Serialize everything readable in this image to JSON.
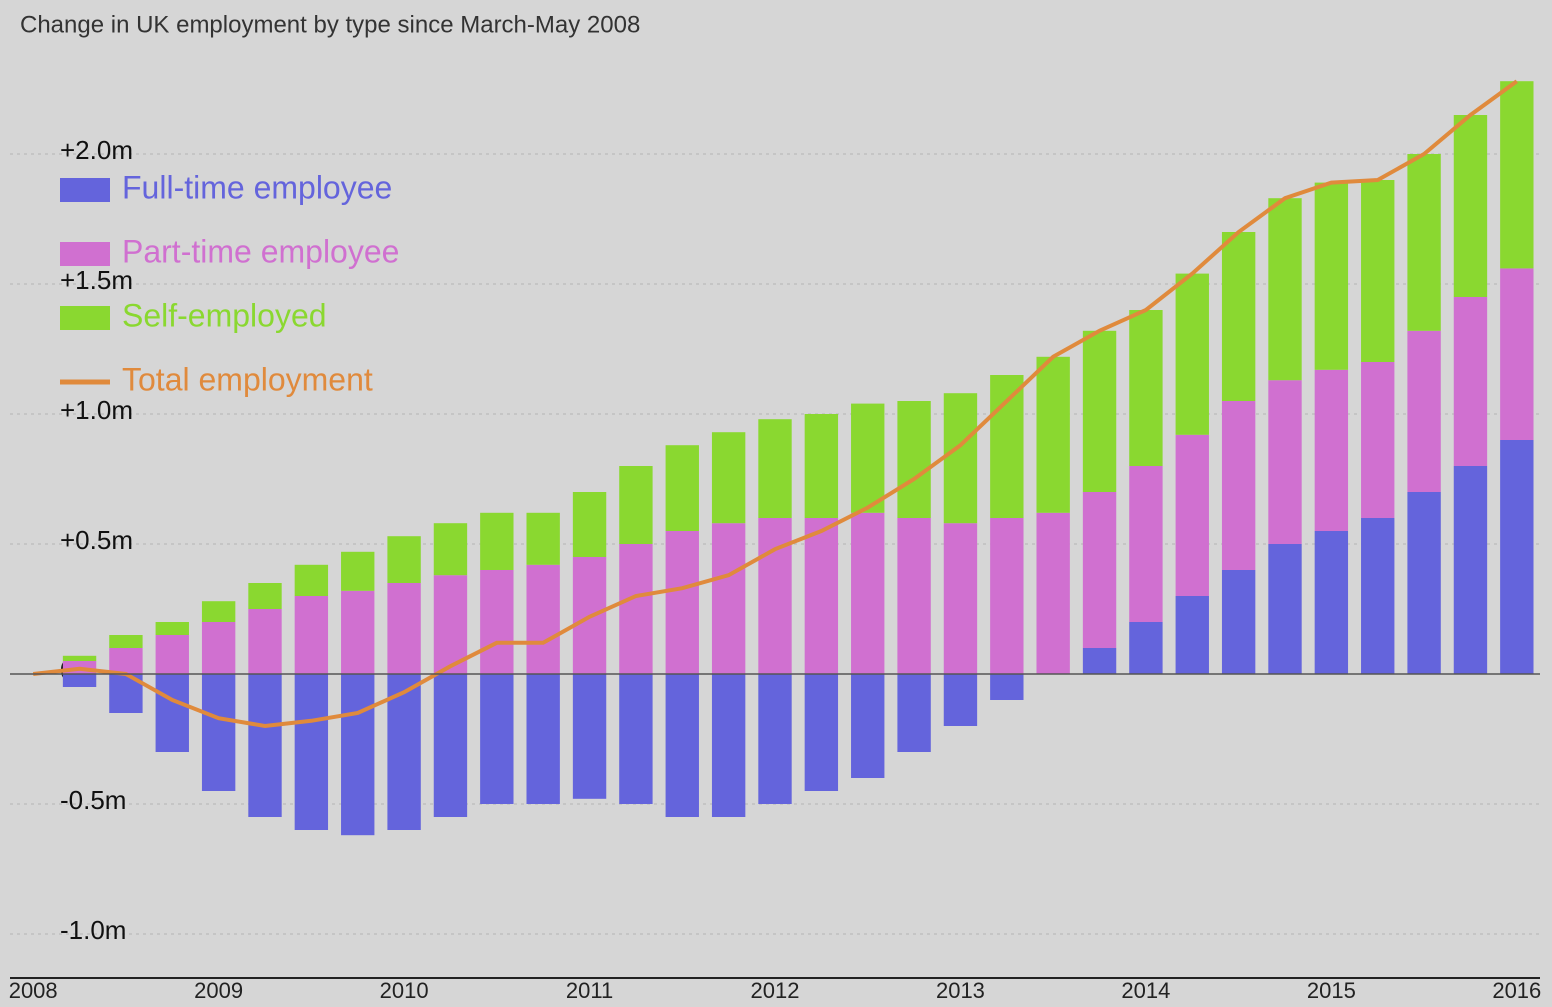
{
  "chart_data": {
    "type": "stacked-bar-line",
    "title": "Change in UK employment by type since March-May 2008",
    "categories": [
      "2008",
      null,
      null,
      null,
      "2009",
      null,
      null,
      null,
      "2010",
      null,
      null,
      null,
      "2011",
      null,
      null,
      null,
      "2012",
      null,
      null,
      null,
      "2013",
      null,
      null,
      null,
      "2014",
      null,
      null,
      null,
      "2015",
      null,
      null,
      null,
      "2016"
    ],
    "series": [
      {
        "name": "Full-time employee",
        "color": "#6464dc",
        "kind": "bar",
        "values": [
          0,
          -0.05,
          -0.15,
          -0.3,
          -0.45,
          -0.55,
          -0.6,
          -0.62,
          -0.6,
          -0.55,
          -0.5,
          -0.5,
          -0.48,
          -0.5,
          -0.55,
          -0.55,
          -0.5,
          -0.45,
          -0.4,
          -0.3,
          -0.2,
          -0.1,
          0,
          0.1,
          0.2,
          0.3,
          0.4,
          0.5,
          0.55,
          0.6,
          0.7,
          0.8,
          0.9
        ]
      },
      {
        "name": "Part-time employee",
        "color": "#d070d0",
        "kind": "bar",
        "values": [
          0,
          0.05,
          0.1,
          0.15,
          0.2,
          0.25,
          0.3,
          0.32,
          0.35,
          0.38,
          0.4,
          0.42,
          0.45,
          0.5,
          0.55,
          0.58,
          0.6,
          0.6,
          0.62,
          0.6,
          0.58,
          0.6,
          0.62,
          0.6,
          0.6,
          0.62,
          0.65,
          0.63,
          0.62,
          0.6,
          0.62,
          0.65,
          0.66
        ]
      },
      {
        "name": "Self-employed",
        "color": "#8ad830",
        "kind": "bar",
        "values": [
          0,
          0.02,
          0.05,
          0.05,
          0.08,
          0.1,
          0.12,
          0.15,
          0.18,
          0.2,
          0.22,
          0.2,
          0.25,
          0.3,
          0.33,
          0.35,
          0.38,
          0.4,
          0.42,
          0.45,
          0.5,
          0.55,
          0.6,
          0.62,
          0.6,
          0.62,
          0.65,
          0.7,
          0.72,
          0.7,
          0.68,
          0.7,
          0.72
        ]
      },
      {
        "name": "Total employment",
        "color": "#e08a3c",
        "kind": "line",
        "values": [
          0,
          0.02,
          0,
          -0.1,
          -0.17,
          -0.2,
          -0.18,
          -0.15,
          -0.07,
          0.03,
          0.12,
          0.12,
          0.22,
          0.3,
          0.33,
          0.38,
          0.48,
          0.55,
          0.64,
          0.75,
          0.88,
          1.05,
          1.22,
          1.32,
          1.4,
          1.54,
          1.7,
          1.83,
          1.89,
          1.9,
          2.0,
          2.15,
          2.28
        ]
      }
    ],
    "ylim": [
      -1.1,
      2.4
    ],
    "yticks": [
      {
        "value": -1.0,
        "label": "-1.0m"
      },
      {
        "value": -0.5,
        "label": "-0.5m"
      },
      0,
      {
        "value": 0.5,
        "label": "+0.5m"
      },
      {
        "value": 1.0,
        "label": "+1.0m"
      },
      {
        "value": 1.5,
        "label": "+1.5m"
      },
      {
        "value": 2.0,
        "label": "+2.0m"
      }
    ],
    "grid": true,
    "legend": "top-left"
  }
}
